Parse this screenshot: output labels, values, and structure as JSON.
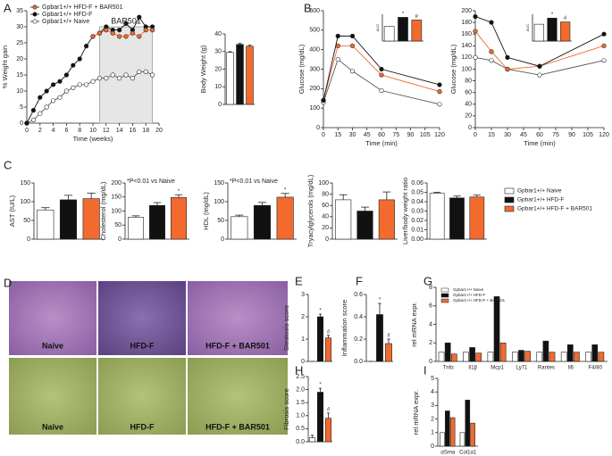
{
  "panel_letters": [
    "A",
    "B",
    "C",
    "D",
    "E",
    "F",
    "G",
    "H",
    "I"
  ],
  "micrographs": {
    "rows": [
      [
        "Naive",
        "HFD-F",
        "HFD-F + BAR501"
      ],
      [
        "Naive",
        "HFD-F",
        "HFD-F + BAR501"
      ]
    ]
  },
  "shared_legend": {
    "labels": [
      "Gpbar1+/+ Naive",
      "Gpbar1+/+ HFD-F",
      "Gpbar1+/+ HFD-F + BAR501"
    ],
    "colors": [
      "#ffffff",
      "#111111",
      "#f26a2e"
    ]
  },
  "chart_data": [
    {
      "type": "line",
      "xlabel": "Time (weeks)",
      "ylabel": "% Weight gain",
      "xlim": [
        0,
        20
      ],
      "xticks": [
        0,
        2,
        4,
        6,
        8,
        10,
        12,
        14,
        16,
        18,
        20
      ],
      "ylim": [
        0,
        35
      ],
      "yticks": [
        0,
        5,
        10,
        15,
        20,
        25,
        30,
        35
      ],
      "x": [
        0,
        1,
        2,
        3,
        4,
        5,
        6,
        7,
        8,
        9,
        10,
        11,
        12,
        13,
        14,
        15,
        16,
        17,
        18,
        19
      ],
      "series": [
        {
          "name": "Gpbar1+/+ HFD-F + BAR501",
          "color": "#f26a2e",
          "values": [
            null,
            null,
            null,
            null,
            null,
            null,
            null,
            null,
            null,
            null,
            27,
            28,
            29,
            28,
            27,
            27,
            28,
            27,
            29,
            29
          ]
        },
        {
          "name": "Gpbar1+/+ HFD-F",
          "color": "#111111",
          "values": [
            0,
            4,
            8,
            10,
            12,
            13,
            15,
            18,
            20,
            24,
            27,
            28,
            30,
            29,
            29,
            31,
            29,
            33,
            30,
            30
          ]
        },
        {
          "name": "Gpbar1+/+ Naive",
          "color": "#ffffff",
          "values": [
            0,
            1,
            3,
            5,
            7,
            8,
            10,
            11,
            12,
            12,
            13,
            14,
            14,
            15,
            14,
            15,
            14,
            16,
            16,
            15
          ]
        }
      ],
      "shade": {
        "from": 11,
        "to": 19,
        "label": "BAR501"
      },
      "legend": "upper left"
    },
    {
      "type": "bar",
      "ylabel": "Body Weight (g)",
      "categories": [
        null,
        null,
        null
      ],
      "values": [
        29.5,
        34,
        33
      ],
      "errors": [
        0.4,
        0.6,
        0.6
      ],
      "colors": [
        "#ffffff",
        "#111111",
        "#f26a2e"
      ],
      "ylim": [
        0,
        40
      ],
      "yticks": [
        0,
        10,
        20,
        30,
        40
      ]
    },
    {
      "type": "line",
      "xlabel": "Time (min)",
      "ylabel": "Glucose (mg/dL)",
      "xlim": [
        0,
        120
      ],
      "xticks": [
        0,
        15,
        30,
        45,
        60,
        75,
        90,
        105,
        120
      ],
      "ylim": [
        0,
        600
      ],
      "yticks": [
        0,
        100,
        200,
        300,
        400,
        500,
        600
      ],
      "x": [
        0,
        15,
        30,
        60,
        120
      ],
      "series": [
        {
          "color": "#111111",
          "values": [
            140,
            470,
            470,
            300,
            220
          ]
        },
        {
          "color": "#f26a2e",
          "values": [
            140,
            420,
            420,
            270,
            185
          ]
        },
        {
          "color": "#ffffff",
          "values": [
            130,
            350,
            290,
            190,
            120
          ]
        }
      ]
    },
    {
      "type": "bar",
      "ylabel": "AUC",
      "categories": [
        null,
        null,
        null
      ],
      "values": [
        38000,
        62000,
        55000
      ],
      "colors": [
        "#ffffff",
        "#111111",
        "#f26a2e"
      ],
      "ylim": [
        0,
        70000
      ],
      "marks": [
        null,
        "*",
        "#"
      ]
    },
    {
      "type": "line",
      "xlabel": "Time (min)",
      "ylabel": "Glucose (mg/dL)",
      "xlim": [
        0,
        120
      ],
      "xticks": [
        0,
        15,
        30,
        45,
        60,
        75,
        90,
        105,
        120
      ],
      "ylim": [
        0,
        200
      ],
      "yticks": [
        0,
        20,
        40,
        60,
        80,
        100,
        120,
        140,
        160,
        180,
        200
      ],
      "x": [
        0,
        15,
        30,
        60,
        120
      ],
      "series": [
        {
          "color": "#111111",
          "values": [
            190,
            180,
            120,
            105,
            160
          ]
        },
        {
          "color": "#f26a2e",
          "values": [
            165,
            130,
            100,
            105,
            140
          ]
        },
        {
          "color": "#ffffff",
          "values": [
            120,
            115,
            100,
            90,
            115
          ]
        }
      ]
    },
    {
      "type": "bar",
      "ylabel": "AUC",
      "categories": [
        null,
        null,
        null
      ],
      "values": [
        22000,
        30000,
        25000
      ],
      "colors": [
        "#ffffff",
        "#111111",
        "#f26a2e"
      ],
      "ylim": [
        0,
        35000
      ],
      "marks": [
        null,
        "*",
        "#"
      ]
    },
    {
      "type": "bar",
      "ylabel": "AST (IU/L)",
      "categories": [
        null,
        null,
        null
      ],
      "values": [
        78,
        105,
        108
      ],
      "errors": [
        6,
        12,
        15
      ],
      "colors": [
        "#ffffff",
        "#111111",
        "#f26a2e"
      ],
      "ylim": [
        0,
        150
      ],
      "yticks": [
        0,
        50,
        100,
        150
      ]
    },
    {
      "type": "bar",
      "ylabel": "Cholesterol (mg/dL)",
      "annotation": "*P<0.01 vs Naive",
      "categories": [
        null,
        null,
        null
      ],
      "values": [
        78,
        120,
        148
      ],
      "errors": [
        5,
        10,
        10
      ],
      "colors": [
        "#ffffff",
        "#111111",
        "#f26a2e"
      ],
      "ylim": [
        0,
        200
      ],
      "yticks": [
        0,
        50,
        100,
        150,
        200
      ],
      "marks": [
        null,
        null,
        "*"
      ]
    },
    {
      "type": "bar",
      "ylabel": "HDL (mg/dL)",
      "annotation": "*P<0.01 vs Naive",
      "categories": [
        null,
        null,
        null
      ],
      "values": [
        60,
        90,
        112
      ],
      "errors": [
        4,
        8,
        10
      ],
      "colors": [
        "#ffffff",
        "#111111",
        "#f26a2e"
      ],
      "ylim": [
        0,
        150
      ],
      "yticks": [
        0,
        50,
        100,
        150
      ],
      "marks": [
        null,
        null,
        "*"
      ]
    },
    {
      "type": "bar",
      "ylabel": "Tryacylglycerols (mg/dL)",
      "categories": [
        null,
        null,
        null
      ],
      "values": [
        70,
        50,
        70
      ],
      "errors": [
        9,
        7,
        14
      ],
      "colors": [
        "#ffffff",
        "#111111",
        "#f26a2e"
      ],
      "ylim": [
        0,
        100
      ],
      "yticks": [
        0,
        20,
        40,
        60,
        80,
        100
      ]
    },
    {
      "type": "bar",
      "ylabel": "Liver/body weight ratio",
      "categories": [
        null,
        null,
        null
      ],
      "values": [
        0.049,
        0.044,
        0.045
      ],
      "errors": [
        0.001,
        0.002,
        0.002
      ],
      "colors": [
        "#ffffff",
        "#111111",
        "#f26a2e"
      ],
      "ylim": [
        0,
        0.06
      ],
      "yticks": [
        {
          "value": 0,
          "label": "0.00"
        },
        {
          "value": 0.01,
          "label": "0.01"
        },
        {
          "value": 0.02,
          "label": "0.02"
        },
        {
          "value": 0.03,
          "label": "0.03"
        },
        {
          "value": 0.04,
          "label": "0.04"
        },
        {
          "value": 0.05,
          "label": "0.05"
        },
        {
          "value": 0.06,
          "label": "0.06"
        }
      ]
    },
    {
      "type": "bar",
      "ylabel": "Steatosis score",
      "categories": [
        null,
        null,
        null
      ],
      "values": [
        0,
        2,
        1.05
      ],
      "errors": [
        0,
        0.12,
        0.12
      ],
      "colors": [
        "#ffffff",
        "#111111",
        "#f26a2e"
      ],
      "ylim": [
        0,
        3
      ],
      "yticks": [
        0,
        1,
        2,
        3
      ],
      "marks": [
        null,
        "*",
        "#"
      ]
    },
    {
      "type": "bar",
      "ylabel": "Inflammation score",
      "categories": [
        null,
        null,
        null
      ],
      "values": [
        0,
        0.42,
        0.16
      ],
      "errors": [
        0,
        0.1,
        0.04
      ],
      "colors": [
        "#ffffff",
        "#111111",
        "#f26a2e"
      ],
      "ylim": [
        0,
        0.6
      ],
      "yticks": [
        {
          "value": 0,
          "label": "0.0"
        },
        0.2,
        0.4,
        0.6
      ],
      "marks": [
        null,
        "*",
        "#"
      ]
    },
    {
      "type": "bar",
      "ylabel": "rel mRNA expr.",
      "categories": [
        "Tnfα",
        "Il1β",
        "Mcp1",
        "Ly71",
        "Rantes",
        "Il6",
        "F4/80"
      ],
      "ylim": [
        0,
        8
      ],
      "yticks": [
        0,
        2,
        4,
        6,
        8
      ],
      "legend": "upper left",
      "series": [
        {
          "name": "Gpbar1+/+ Naive",
          "color": "#ffffff",
          "values": [
            1,
            1,
            1,
            1,
            1,
            1,
            1
          ]
        },
        {
          "name": "Gpbar1+/+ HFD-F",
          "color": "#111111",
          "values": [
            2,
            1.5,
            7,
            1.2,
            2.2,
            1.8,
            1.8
          ]
        },
        {
          "name": "Gpbar1+/+ HFD-F + BAR501",
          "color": "#f26a2e",
          "values": [
            0.8,
            0.9,
            2,
            1.1,
            1,
            1,
            1
          ]
        }
      ]
    },
    {
      "type": "bar",
      "ylabel": "Fibrosis score",
      "categories": [
        null,
        null,
        null
      ],
      "values": [
        0.15,
        1.9,
        0.9
      ],
      "errors": [
        0.1,
        0.15,
        0.2
      ],
      "colors": [
        "#ffffff",
        "#111111",
        "#f26a2e"
      ],
      "ylim": [
        0,
        2.5
      ],
      "yticks": [
        {
          "value": 0,
          "label": "0.0"
        },
        0.5,
        {
          "value": 1,
          "label": "1.0"
        },
        1.5,
        {
          "value": 2,
          "label": "2.0"
        },
        2.5
      ],
      "marks": [
        null,
        "*",
        "#"
      ]
    },
    {
      "type": "bar",
      "ylabel": "rel mRNA expr.",
      "categories": [
        "αSma",
        "Col1α1"
      ],
      "ylim": [
        0,
        5
      ],
      "yticks": [
        0,
        1,
        2,
        3,
        4,
        5
      ],
      "series": [
        {
          "color": "#ffffff",
          "values": [
            1,
            1
          ]
        },
        {
          "color": "#111111",
          "values": [
            2.6,
            3.4
          ]
        },
        {
          "color": "#f26a2e",
          "values": [
            2.1,
            1.7
          ]
        }
      ]
    }
  ]
}
